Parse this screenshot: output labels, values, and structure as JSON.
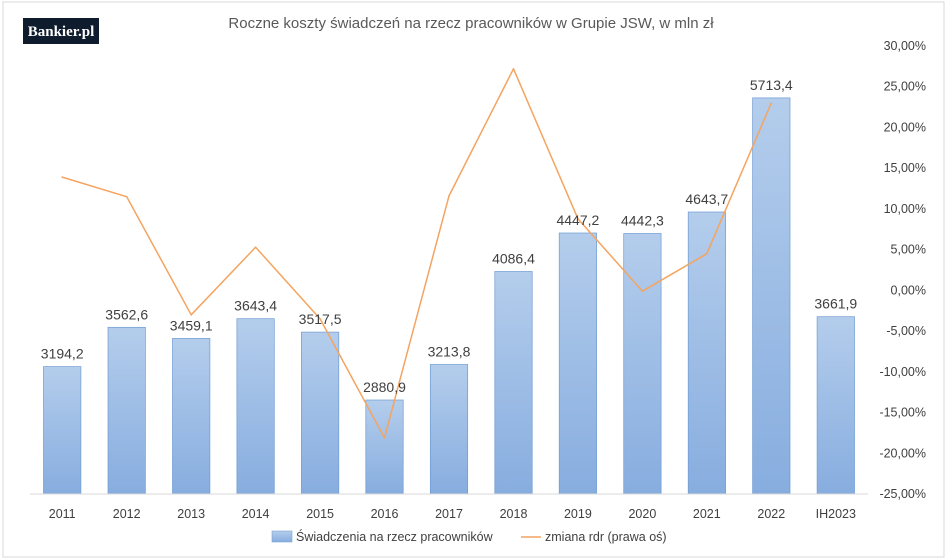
{
  "logo": {
    "text": "Bankier.pl",
    "bg_color": "#0f1c2e"
  },
  "chart_data": {
    "type": "bar",
    "title": "Roczne koszty świadczeń na rzecz pracowników w Grupie JSW, w mln zł",
    "categories": [
      "2011",
      "2012",
      "2013",
      "2014",
      "2015",
      "2016",
      "2017",
      "2018",
      "2019",
      "2020",
      "2021",
      "2022",
      "IH2023"
    ],
    "series": [
      {
        "name": "Świadczenia na rzecz pracowników",
        "type": "bar",
        "axis": "left",
        "color": "#8eb4e3",
        "values": [
          3194.2,
          3562.6,
          3459.1,
          3643.4,
          3517.5,
          2880.9,
          3213.8,
          4086.4,
          4447.2,
          4442.3,
          4643.7,
          5713.4,
          3661.9
        ],
        "labels": [
          "3194,2",
          "3562,6",
          "3459,1",
          "3643,4",
          "3517,5",
          "2880,9",
          "3213,8",
          "4086,4",
          "4447,2",
          "4442,3",
          "4643,7",
          "5713,4",
          "3661,9"
        ]
      },
      {
        "name": "zmiana rdr (prawa oś)",
        "type": "line",
        "axis": "right",
        "color": "#f4a460",
        "values": [
          13.9,
          11.5,
          -3.0,
          5.3,
          -3.5,
          -18.1,
          11.6,
          27.2,
          8.8,
          -0.1,
          4.5,
          23.0,
          null
        ]
      }
    ],
    "left_axis": {
      "min": 2000,
      "max": 6200,
      "visible": false
    },
    "right_axis": {
      "min": -25,
      "max": 30,
      "ticks": [
        30,
        25,
        20,
        15,
        10,
        5,
        0,
        -5,
        -10,
        -15,
        -20,
        -25
      ],
      "tick_labels": [
        "30,00%",
        "25,00%",
        "20,00%",
        "15,00%",
        "10,00%",
        "5,00%",
        "0,00%",
        "-5,00%",
        "-10,00%",
        "-15,00%",
        "-20,00%",
        "-25,00%"
      ]
    },
    "grid": false,
    "legend_position": "bottom"
  }
}
